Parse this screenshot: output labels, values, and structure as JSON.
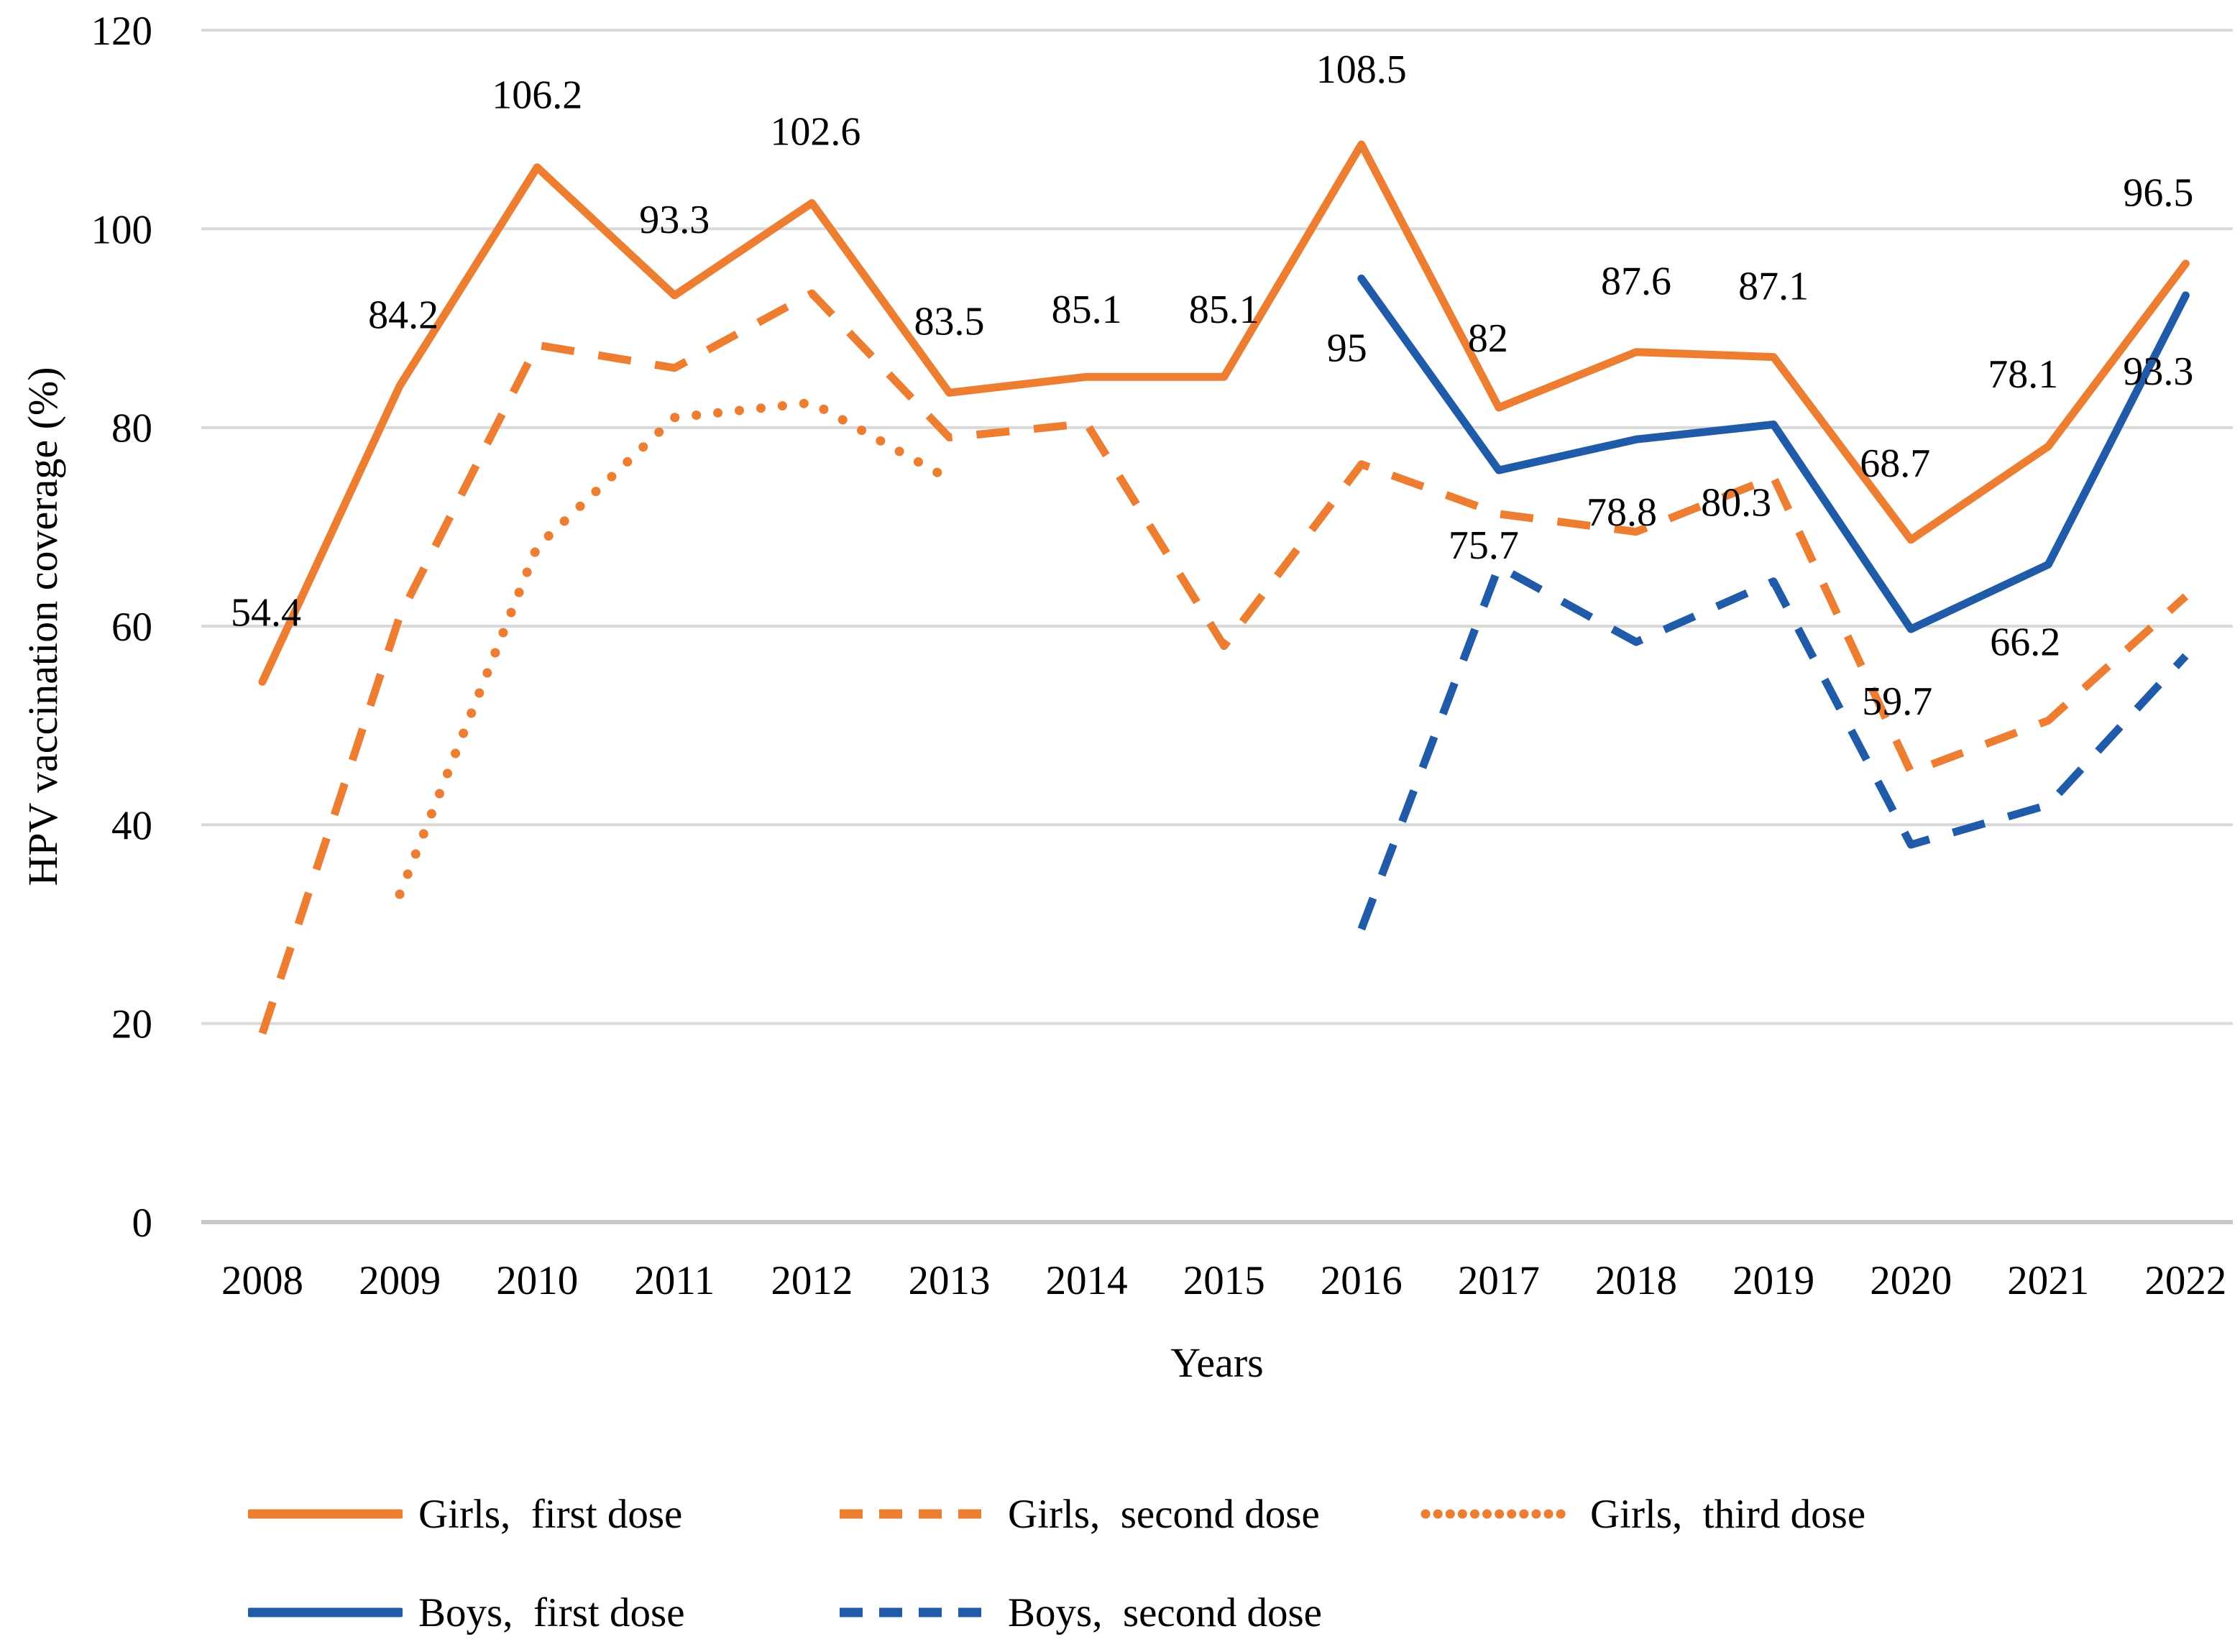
{
  "figure": {
    "y_axis_title": "HPV vaccination coverage (%)",
    "x_axis_title": "Years"
  },
  "chart_data": {
    "type": "line",
    "title": "",
    "xlabel": "Years",
    "ylabel": "HPV vaccination coverage (%)",
    "ylim": [
      0,
      120
    ],
    "yticks": [
      0,
      20,
      40,
      60,
      80,
      100,
      120
    ],
    "grid": true,
    "legend_position": "bottom",
    "categories": [
      "2008",
      "2009",
      "2010",
      "2011",
      "2012",
      "2013",
      "2014",
      "2015",
      "2016",
      "2017",
      "2018",
      "2019",
      "2020",
      "2021",
      "2022"
    ],
    "series": [
      {
        "name": "Girls,  first dose",
        "style": "solid",
        "color": "#ED7D31",
        "values": [
          54.4,
          84.2,
          106.2,
          93.3,
          102.6,
          83.5,
          85.1,
          85.1,
          108.5,
          82,
          87.6,
          87.1,
          68.7,
          78.1,
          96.5
        ],
        "point_labels": [
          {
            "index": 0,
            "text": "54.4",
            "dx": 5,
            "dy": -98
          },
          {
            "index": 1,
            "text": "84.2",
            "dx": 5,
            "dy": -100
          },
          {
            "index": 2,
            "text": "106.2",
            "dx": 0,
            "dy": -102
          },
          {
            "index": 3,
            "text": "93.3",
            "dx": 0,
            "dy": -107
          },
          {
            "index": 4,
            "text": "102.6",
            "dx": 5,
            "dy": -101
          },
          {
            "index": 5,
            "text": "83.5",
            "dx": 0,
            "dy": -101
          },
          {
            "index": 6,
            "text": "85.1",
            "dx": 0,
            "dy": -95
          },
          {
            "index": 7,
            "text": "85.1",
            "dx": 0,
            "dy": -95
          },
          {
            "index": 8,
            "text": "108.5",
            "dx": 0,
            "dy": -106
          },
          {
            "index": 9,
            "text": "82",
            "dx": -15,
            "dy": -98
          },
          {
            "index": 10,
            "text": "87.6",
            "dx": 0,
            "dy": -100
          },
          {
            "index": 11,
            "text": "87.1",
            "dx": 0,
            "dy": -100
          },
          {
            "index": 12,
            "text": "68.7",
            "dx": -22,
            "dy": -108
          },
          {
            "index": 13,
            "text": "78.1",
            "dx": -35,
            "dy": -102
          },
          {
            "index": 14,
            "text": "96.5",
            "dx": -38,
            "dy": -100
          }
        ]
      },
      {
        "name": "Girls,  second dose",
        "style": "dashed",
        "color": "#ED7D31",
        "values": [
          19,
          61,
          88.3,
          86,
          93.5,
          79,
          80.4,
          58,
          76.3,
          71.3,
          69.5,
          75,
          45.3,
          50.5,
          63
        ],
        "point_labels": []
      },
      {
        "name": "Girls,  third dose",
        "style": "dotted",
        "color": "#ED7D31",
        "values": [
          null,
          33,
          68,
          81,
          82.5,
          74.8,
          null,
          null,
          null,
          null,
          null,
          null,
          null,
          null,
          null
        ],
        "point_labels": []
      },
      {
        "name": "Boys,  first dose",
        "style": "solid",
        "color": "#1F5BA8",
        "values": [
          null,
          null,
          null,
          null,
          null,
          null,
          null,
          null,
          95,
          75.7,
          78.8,
          80.3,
          59.7,
          66.2,
          93.3
        ],
        "point_labels": [
          {
            "index": 8,
            "text": "95",
            "dx": -20,
            "dy": 95
          },
          {
            "index": 9,
            "text": "75.7",
            "dx": -21,
            "dy": 103
          },
          {
            "index": 10,
            "text": "78.8",
            "dx": -20,
            "dy": 100
          },
          {
            "index": 11,
            "text": "80.3",
            "dx": -52,
            "dy": 107
          },
          {
            "index": 12,
            "text": "59.7",
            "dx": -19,
            "dy": 99
          },
          {
            "index": 13,
            "text": "66.2",
            "dx": -32,
            "dy": 106
          },
          {
            "index": 14,
            "text": "93.3",
            "dx": -38,
            "dy": 104
          }
        ]
      },
      {
        "name": "Boys,  second dose",
        "style": "dashed",
        "color": "#1F5BA8",
        "values": [
          null,
          null,
          null,
          null,
          null,
          null,
          null,
          null,
          29.5,
          66,
          58.4,
          64.5,
          38,
          42,
          57
        ],
        "point_labels": []
      }
    ],
    "colors": {
      "grid": "#D9D9D9",
      "axis_line": "#C6C6C6",
      "text": "#000000",
      "orange": "#ED7D31",
      "blue": "#1F5BA8"
    }
  }
}
